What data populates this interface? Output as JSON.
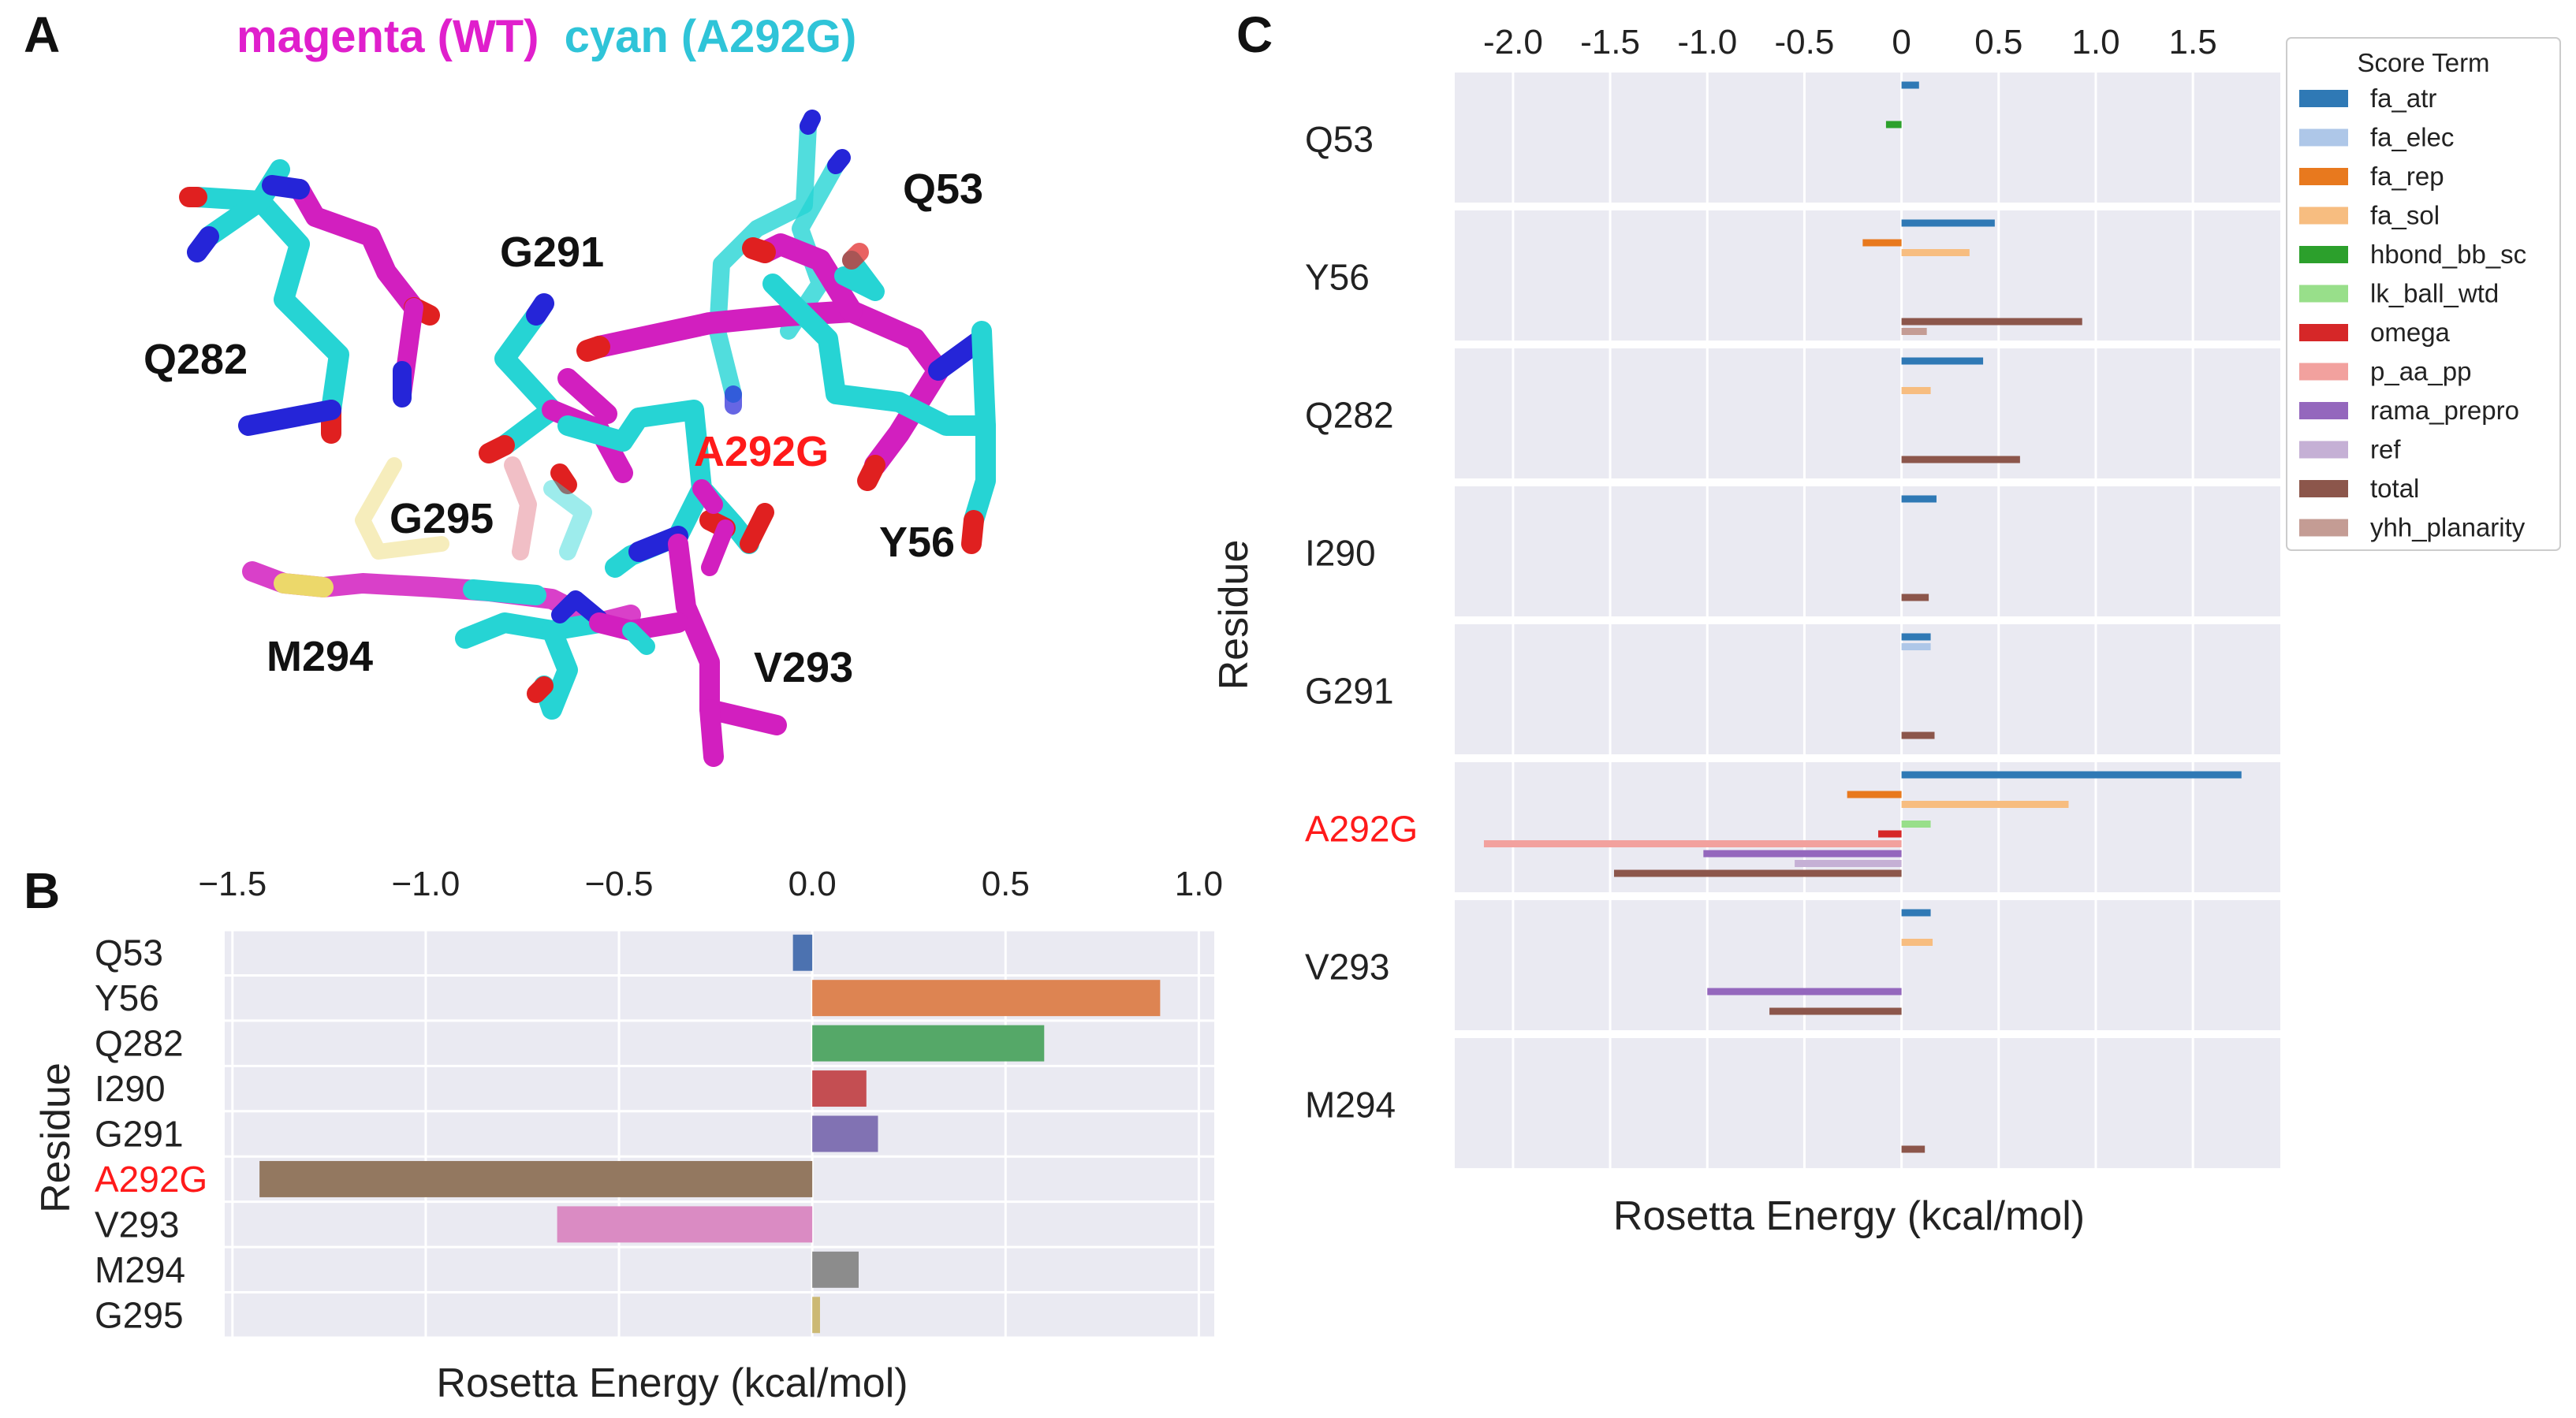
{
  "panels": {
    "a": {
      "letter": "A",
      "legend_magenta": "magenta (WT)",
      "legend_cyan": "cyan (A292G)"
    },
    "b": {
      "letter": "B"
    },
    "c": {
      "letter": "C"
    }
  },
  "structure": {
    "labels": [
      "Q53",
      "G291",
      "Q282",
      "A292G",
      "G295",
      "Y56",
      "M294",
      "V293"
    ],
    "highlight_label": "A292G",
    "colors": {
      "wt": "#d21fbf",
      "mutant": "#26d4d4",
      "highlight": "#ff1a1a",
      "oxygen": "#e02020",
      "nitrogen": "#2525d8",
      "sulfur": "#ecd86a"
    }
  },
  "chart_data": [
    {
      "type": "bar",
      "orientation": "horizontal",
      "panel": "B",
      "title": "",
      "xlabel": "Rosetta Energy (kcal/mol)",
      "ylabel": "Residue",
      "xlim": [
        -1.5,
        1.0
      ],
      "xticks": [
        -1.5,
        -1.0,
        -0.5,
        0.0,
        0.5,
        1.0
      ],
      "xtick_labels": [
        "−1.5",
        "−1.0",
        "−0.5",
        "0.0",
        "0.5",
        "1.0"
      ],
      "xaxis_position": "top",
      "grid": true,
      "highlight_category": "A292G",
      "categories": [
        "Q53",
        "Y56",
        "Q282",
        "I290",
        "G291",
        "A292G",
        "V293",
        "M294",
        "G295"
      ],
      "values": [
        -0.05,
        0.9,
        0.6,
        0.14,
        0.17,
        -1.43,
        -0.66,
        0.12,
        0.02
      ],
      "colors": [
        "#4c72b0",
        "#dd8452",
        "#55a868",
        "#c44e52",
        "#8172b3",
        "#937860",
        "#da8bc3",
        "#8c8c8c",
        "#ccb974"
      ]
    },
    {
      "type": "bar",
      "orientation": "horizontal",
      "panel": "C",
      "title": "",
      "xlabel": "Rosetta Energy (kcal/mol)",
      "ylabel": "Residue",
      "xlim": [
        -2.3,
        1.95
      ],
      "xticks": [
        -2.0,
        -1.5,
        -1.0,
        -0.5,
        0,
        0.5,
        1.0,
        1.5
      ],
      "xtick_labels": [
        "-2.0",
        "-1.5",
        "-1.0",
        "-0.5",
        "0",
        "0.5",
        "1.0",
        "1.5"
      ],
      "xaxis_position": "top",
      "grid": true,
      "highlight_category": "A292G",
      "legend": {
        "title": "Score Term",
        "position": "right"
      },
      "categories": [
        "Q53",
        "Y56",
        "Q282",
        "I290",
        "G291",
        "A292G",
        "V293",
        "M294"
      ],
      "series": [
        {
          "name": "fa_atr",
          "color": "#2f79b5",
          "values": [
            0.09,
            0.48,
            0.42,
            0.18,
            0.15,
            1.75,
            0.15,
            0
          ]
        },
        {
          "name": "fa_elec",
          "color": "#aec7e8",
          "values": [
            0,
            0,
            0,
            0,
            0.15,
            0,
            0,
            0
          ]
        },
        {
          "name": "fa_rep",
          "color": "#e8791e",
          "values": [
            0,
            -0.2,
            0,
            0,
            0,
            -0.28,
            0,
            0
          ]
        },
        {
          "name": "fa_sol",
          "color": "#f7bd80",
          "values": [
            0,
            0.35,
            0.15,
            0,
            0,
            0.86,
            0.16,
            0
          ]
        },
        {
          "name": "hbond_bb_sc",
          "color": "#2ca02c",
          "values": [
            -0.08,
            0,
            0,
            0,
            0,
            0,
            0,
            0
          ]
        },
        {
          "name": "lk_ball_wtd",
          "color": "#98df8a",
          "values": [
            0,
            0,
            0,
            0,
            0,
            0.15,
            0,
            0
          ]
        },
        {
          "name": "omega",
          "color": "#d62728",
          "values": [
            0,
            0,
            0,
            0,
            0,
            -0.12,
            0,
            0
          ]
        },
        {
          "name": "p_aa_pp",
          "color": "#f2a19e",
          "values": [
            0,
            0,
            0,
            0,
            0,
            -2.15,
            0,
            0
          ]
        },
        {
          "name": "rama_prepro",
          "color": "#9467bd",
          "values": [
            0,
            0,
            0,
            0,
            0,
            -1.02,
            -1.0,
            0
          ]
        },
        {
          "name": "ref",
          "color": "#c5b0d5",
          "values": [
            0,
            0,
            0,
            0,
            0,
            -0.55,
            0,
            0
          ]
        },
        {
          "name": "total",
          "color": "#8c564b",
          "values": [
            0,
            0.93,
            0.61,
            0.14,
            0.17,
            -1.48,
            -0.68,
            0.12
          ]
        },
        {
          "name": "yhh_planarity",
          "color": "#c49c94",
          "values": [
            0,
            0.13,
            0,
            0,
            0,
            0,
            0,
            0
          ]
        }
      ]
    }
  ]
}
